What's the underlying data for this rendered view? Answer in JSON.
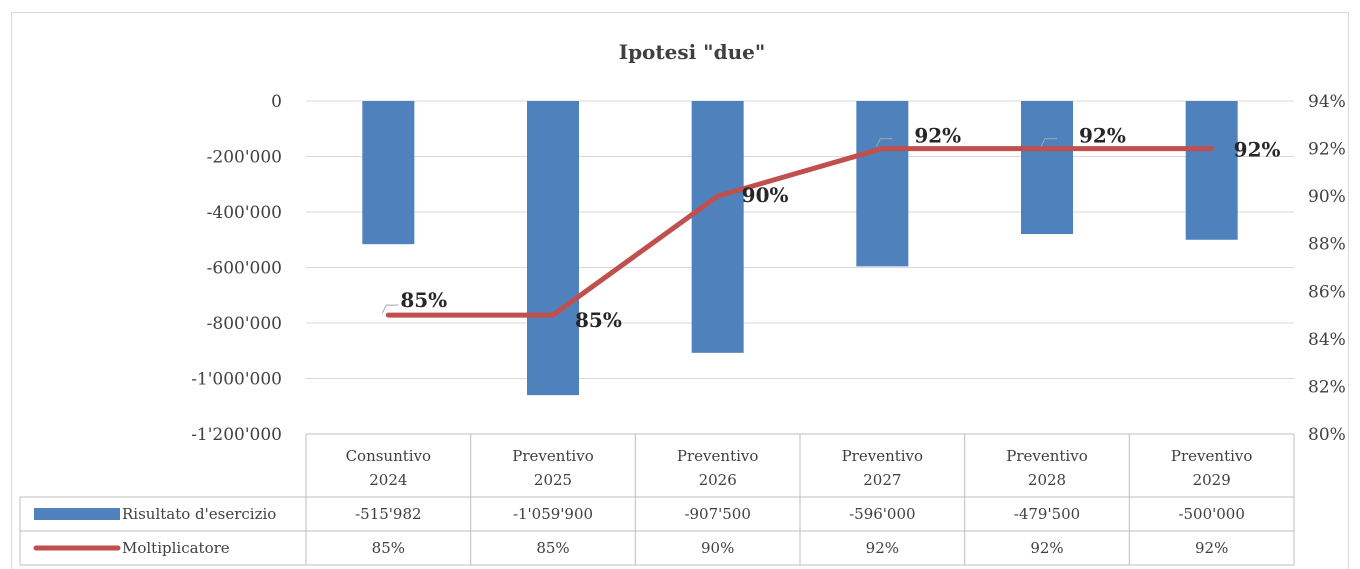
{
  "chart_data": {
    "type": "bar",
    "title": "Ipotesi \"due\"",
    "categories": [
      [
        "Consuntivo",
        "2024"
      ],
      [
        "Preventivo",
        "2025"
      ],
      [
        "Preventivo",
        "2026"
      ],
      [
        "Preventivo",
        "2027"
      ],
      [
        "Preventivo",
        "2028"
      ],
      [
        "Preventivo",
        "2029"
      ]
    ],
    "series": [
      {
        "name": "Risultato d'esercizio",
        "type": "bar",
        "axis": "left",
        "color": "#4f81bd",
        "values": [
          -515982,
          -1059900,
          -907500,
          -596000,
          -479500,
          -500000
        ],
        "table_values": [
          "-515'982",
          "-1'059'900",
          "-907'500",
          "-596'000",
          "-479'500",
          "-500'000"
        ]
      },
      {
        "name": "Moltiplicatore",
        "type": "line",
        "axis": "right",
        "color": "#c0504d",
        "values": [
          85,
          85,
          90,
          92,
          92,
          92
        ],
        "table_values": [
          "85%",
          "85%",
          "90%",
          "92%",
          "92%",
          "92%"
        ],
        "data_labels": [
          "85%",
          "85%",
          "90%",
          "92%",
          "92%",
          "92%"
        ]
      }
    ],
    "y_left": {
      "ylim": [
        -1200000,
        0
      ],
      "ticks": [
        0,
        -200000,
        -400000,
        -600000,
        -800000,
        -1000000,
        -1200000
      ],
      "tick_labels": [
        "0",
        "-200'000",
        "-400'000",
        "-600'000",
        "-800'000",
        "-1'000'000",
        "-1'200'000"
      ]
    },
    "y_right": {
      "ylim": [
        80,
        94
      ],
      "ticks": [
        94,
        92,
        90,
        88,
        86,
        84,
        82,
        80
      ],
      "tick_labels": [
        "94%",
        "92%",
        "90%",
        "88%",
        "86%",
        "84%",
        "82%",
        "80%"
      ]
    },
    "grid": true,
    "legend": "data-table"
  }
}
